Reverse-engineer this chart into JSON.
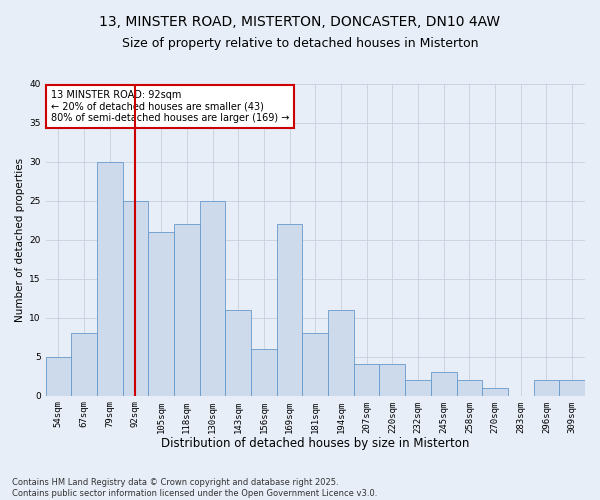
{
  "title_line1": "13, MINSTER ROAD, MISTERTON, DONCASTER, DN10 4AW",
  "title_line2": "Size of property relative to detached houses in Misterton",
  "xlabel": "Distribution of detached houses by size in Misterton",
  "ylabel": "Number of detached properties",
  "categories": [
    "54sqm",
    "67sqm",
    "79sqm",
    "92sqm",
    "105sqm",
    "118sqm",
    "130sqm",
    "143sqm",
    "156sqm",
    "169sqm",
    "181sqm",
    "194sqm",
    "207sqm",
    "220sqm",
    "232sqm",
    "245sqm",
    "258sqm",
    "270sqm",
    "283sqm",
    "296sqm",
    "309sqm"
  ],
  "values": [
    5,
    8,
    30,
    25,
    21,
    22,
    25,
    11,
    6,
    22,
    8,
    11,
    4,
    4,
    2,
    3,
    2,
    1,
    0,
    2,
    2
  ],
  "bar_color": "#ccdaeb",
  "bar_edge_color": "#6699cc",
  "red_line_index": 3,
  "red_line_label": "13 MINSTER ROAD: 92sqm",
  "annotation_line2": "← 20% of detached houses are smaller (43)",
  "annotation_line3": "80% of semi-detached houses are larger (169) →",
  "annotation_box_color": "#ffffff",
  "annotation_box_edge": "#cc0000",
  "red_line_color": "#cc0000",
  "grid_color": "#c5cfe0",
  "background_color": "#e8eef8",
  "ylim": [
    0,
    40
  ],
  "yticks": [
    0,
    5,
    10,
    15,
    20,
    25,
    30,
    35,
    40
  ],
  "footer_line1": "Contains HM Land Registry data © Crown copyright and database right 2025.",
  "footer_line2": "Contains public sector information licensed under the Open Government Licence v3.0.",
  "title_fontsize": 10,
  "subtitle_fontsize": 9,
  "tick_fontsize": 6.5,
  "xlabel_fontsize": 8.5,
  "ylabel_fontsize": 7.5,
  "footer_fontsize": 6,
  "annotation_fontsize": 7
}
